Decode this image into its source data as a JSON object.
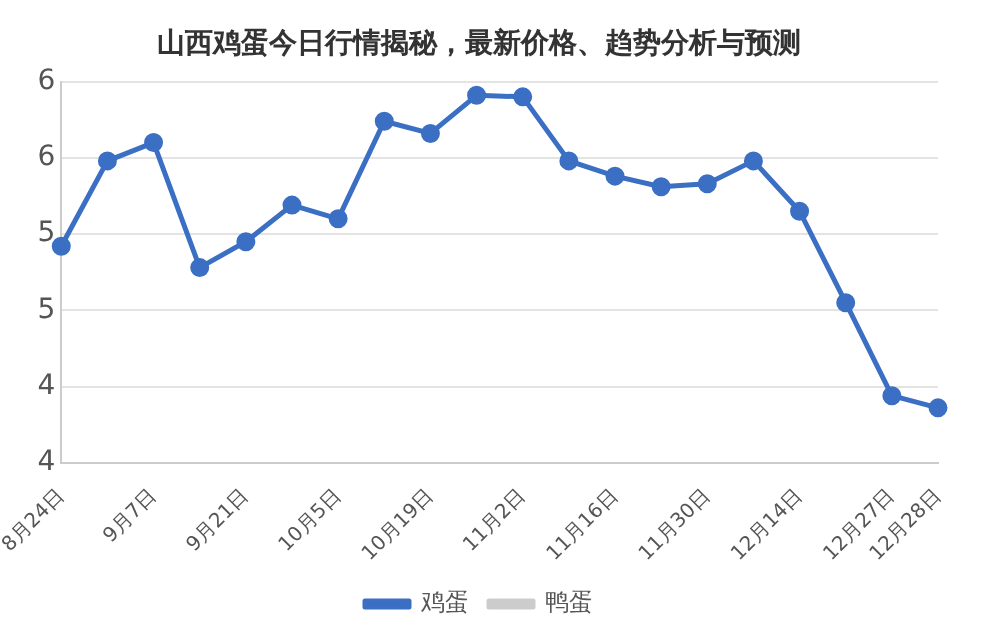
{
  "chart_data": {
    "type": "line",
    "title": "山西鸡蛋今日行情揭秘，最新价格、趋势分析与预测",
    "categories": [
      "8月24日",
      null,
      "9月7日",
      null,
      "9月21日",
      null,
      "10月5日",
      null,
      "10月19日",
      null,
      "11月2日",
      null,
      "11月16日",
      null,
      "11月30日",
      null,
      "12月14日",
      null,
      "12月27日",
      "12月28日"
    ],
    "series": [
      {
        "name": "鸡蛋",
        "color": "#3a6fc4",
        "values": [
          5.42,
          5.98,
          6.1,
          5.28,
          5.45,
          5.69,
          5.6,
          6.24,
          6.16,
          6.41,
          6.4,
          5.98,
          5.88,
          5.81,
          5.83,
          5.98,
          5.65,
          5.05,
          4.44,
          4.36
        ]
      },
      {
        "name": "鸭蛋",
        "color": "#cccccc",
        "values": [
          null,
          null,
          null,
          null,
          null,
          null,
          null,
          null,
          null,
          null,
          null,
          null,
          null,
          null,
          null,
          null,
          null,
          null,
          null,
          null
        ]
      }
    ],
    "ylim": [
      4,
      6.5
    ],
    "yticks": [
      {
        "value": 4,
        "label": "4"
      },
      {
        "value": 4.5,
        "label": "4"
      },
      {
        "value": 5,
        "label": "5"
      },
      {
        "value": 5.5,
        "label": "5"
      },
      {
        "value": 6,
        "label": "6"
      },
      {
        "value": 6.5,
        "label": "6"
      }
    ],
    "grid": "y",
    "legend": "bottom",
    "marker": "circle",
    "line_style": "solid"
  }
}
